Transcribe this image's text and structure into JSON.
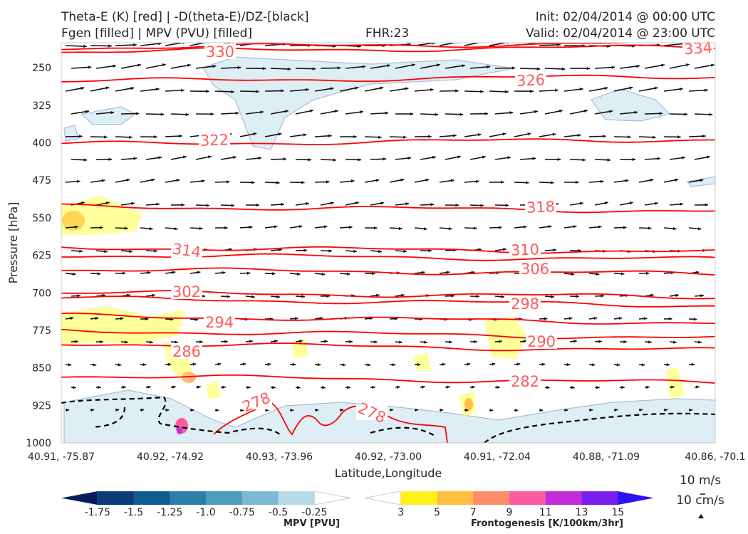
{
  "header": {
    "title_left_1": "Theta-E (K) [red] | -D(theta-E)/DZ-[black]",
    "title_left_2": "Fgen [filled] | MPV (PVU) [filled]",
    "fhr": "FHR:23",
    "init": "Init: 02/04/2014 @ 00:00 UTC",
    "valid": "Valid: 02/04/2014 @ 23:00 UTC"
  },
  "colors": {
    "theta_e": "#ff0000",
    "theta_e_label": "#ff5a5a",
    "ddz": "#000000",
    "fgen_fill": "#ffff7a",
    "mpv_fill": "#d8ecf3",
    "mpv_edge": "#9fb0d6",
    "arrow": "#111111"
  },
  "chart_data": {
    "type": "cross-section",
    "xlabel": "Latitude,Longitude",
    "ylabel": "Pressure [hPa]",
    "x_ticks": [
      "40.91, -75.87",
      "40.92, -74.92",
      "40.93, -73.96",
      "40.92, -73.00",
      "40.91, -72.04",
      "40.88, -71.09",
      "40.86, -70.1"
    ],
    "y_ticks": [
      250,
      325,
      400,
      475,
      550,
      625,
      700,
      775,
      850,
      925,
      1000
    ],
    "ylim": [
      1000,
      200
    ],
    "theta_e_contours": [
      {
        "level": 334,
        "p": 200
      },
      {
        "level": 330,
        "p": 208
      },
      {
        "level": 326,
        "p": 267
      },
      {
        "level": 322,
        "p": 393
      },
      {
        "level": 318,
        "p": 536
      },
      {
        "level": 314,
        "p": 618
      },
      {
        "level": 310,
        "p": 633
      },
      {
        "level": 306,
        "p": 662
      },
      {
        "level": 302,
        "p": 708
      },
      {
        "level": 298,
        "p": 725
      },
      {
        "level": 294,
        "p": 760
      },
      {
        "level": 290,
        "p": 790
      },
      {
        "level": 286,
        "p": 815
      },
      {
        "level": 282,
        "p": 880
      },
      {
        "level": 278,
        "p": 945
      }
    ],
    "theta_e_labels": [
      "334",
      "330",
      "326",
      "322",
      "318",
      "314",
      "310",
      "306",
      "302",
      "298",
      "294",
      "290",
      "286",
      "282",
      "278",
      "278"
    ],
    "wind_reference": {
      "horizontal": "10 m/s",
      "vertical": "10 cm/s"
    },
    "colorbars": [
      {
        "name": "MPV [PVU]",
        "ticks": [
          "-1.75",
          "-1.5",
          "-1.25",
          "-1.0",
          "-0.75",
          "-0.5",
          "-0.25"
        ],
        "colors": [
          "#081d58",
          "#0b3c78",
          "#0f5c92",
          "#2b7fa8",
          "#4d9dbd",
          "#7cb9d2",
          "#b5dbe6",
          "#ffffff"
        ]
      },
      {
        "name": "Frontogenesis [K/100km/3hr]",
        "ticks": [
          "3",
          "5",
          "7",
          "9",
          "11",
          "13",
          "15"
        ],
        "colors": [
          "#ffffff",
          "#fff01a",
          "#ffc040",
          "#ff8c6a",
          "#ff5aa0",
          "#c22ed8",
          "#7a1ef0",
          "#2a14f0"
        ]
      }
    ]
  }
}
